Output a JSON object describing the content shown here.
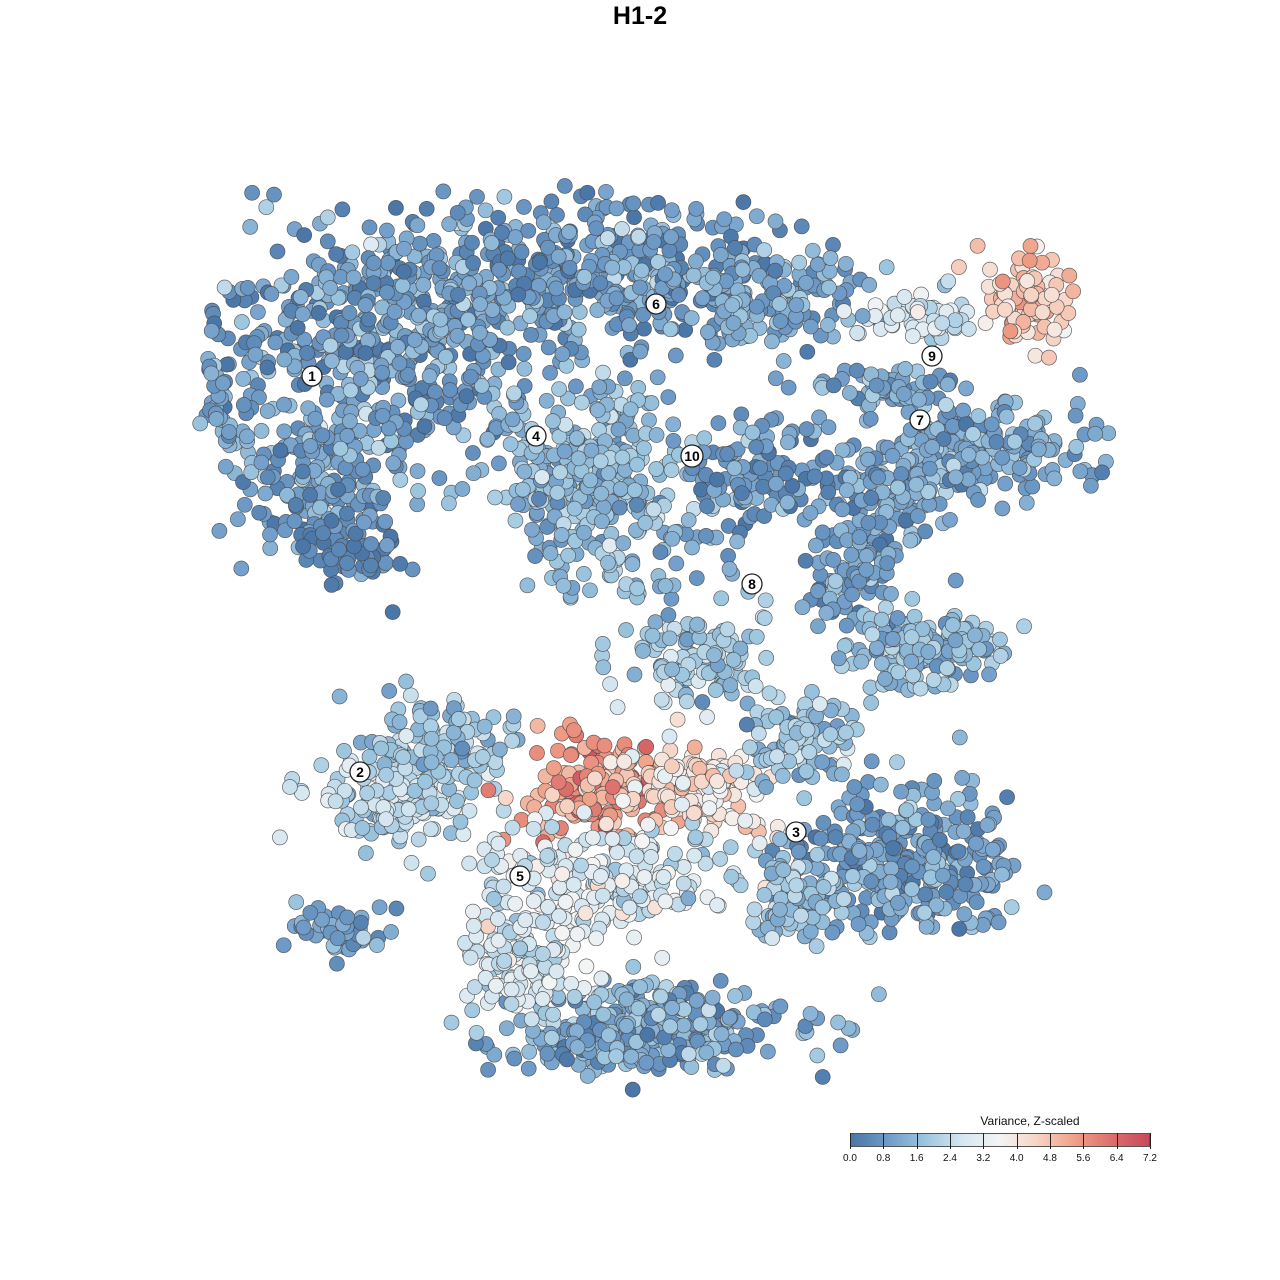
{
  "title": "H1-2",
  "colors": {
    "low": "#4a76a8",
    "mid_low": "#8fbbdb",
    "mid": "#f4f4f4",
    "mid_high": "#f0a088",
    "high": "#c8485a"
  },
  "chart_data": {
    "type": "scatter",
    "title": "H1-2",
    "xlabel": "",
    "ylabel": "",
    "grid": false,
    "legend_placement": "bottom-right",
    "color_scale": {
      "title": "Variance, Z-scaled",
      "min": 0.0,
      "max": 7.2,
      "midpoint": 4.0,
      "ticks": [
        "0.0",
        "0.8",
        "1.6",
        "2.4",
        "3.2",
        "4.0",
        "4.8",
        "5.6",
        "6.4",
        "7.2"
      ],
      "stops": [
        "#4a76a8",
        "#6f9bc8",
        "#9dc6df",
        "#d6e7f1",
        "#f4f4f4",
        "#f7d4c4",
        "#f0a088",
        "#dc6f6c",
        "#c8485a"
      ]
    },
    "clusters": [
      {
        "label": "1",
        "x": -8.2,
        "y": 6.6,
        "mean_value": 1.0
      },
      {
        "label": "2",
        "x": -7.0,
        "y": -3.3,
        "mean_value": 2.1
      },
      {
        "label": "3",
        "x": 3.9,
        "y": -4.8,
        "mean_value": 1.0
      },
      {
        "label": "4",
        "x": -2.6,
        "y": 5.1,
        "mean_value": 1.4
      },
      {
        "label": "5",
        "x": -3.0,
        "y": -5.9,
        "mean_value": 1.6
      },
      {
        "label": "6",
        "x": 0.4,
        "y": 8.4,
        "mean_value": 0.9
      },
      {
        "label": "7",
        "x": 7.0,
        "y": 5.5,
        "mean_value": 1.0
      },
      {
        "label": "8",
        "x": 2.8,
        "y": 1.4,
        "mean_value": 1.5
      },
      {
        "label": "9",
        "x": 7.3,
        "y": 7.1,
        "mean_value": 3.6
      },
      {
        "label": "10",
        "x": 1.3,
        "y": 4.6,
        "mean_value": 0.8
      }
    ]
  }
}
